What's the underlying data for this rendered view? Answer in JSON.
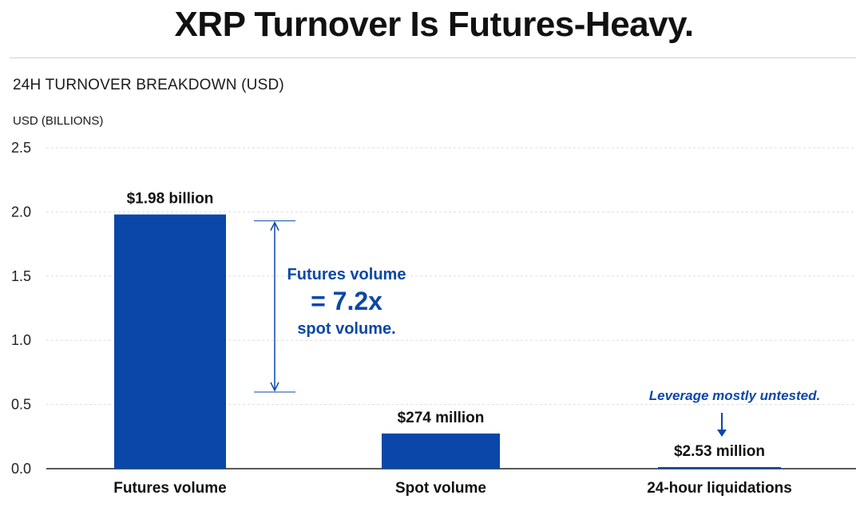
{
  "header": {
    "title": "XRP Turnover Is Futures-Heavy.",
    "subtitle": "24H TURNOVER BREAKDOWN (USD)"
  },
  "colors": {
    "bar": "#0a47a8",
    "annotation": "#0a47a8",
    "grid": "#dddddd",
    "axis": "#222222"
  },
  "chart_data": {
    "type": "bar",
    "title": "",
    "xlabel": "",
    "ylabel": "USD (BILLIONS)",
    "ylim": [
      0,
      2.5
    ],
    "yticks": [
      "0.0",
      "0.5",
      "1.0",
      "1.5",
      "2.0",
      "2.5"
    ],
    "grid": true,
    "categories": [
      "Futures volume",
      "Spot volume",
      "24-hour liquidations"
    ],
    "values": [
      1.98,
      0.274,
      0.00253
    ],
    "data_labels": [
      "$1.98 billion",
      "$274 million",
      "$2.53 million"
    ],
    "annotations": {
      "ratio_line1": "Futures volume",
      "ratio_line2": "= 7.2x",
      "ratio_line3": "spot volume.",
      "leverage_note": "Leverage mostly untested."
    }
  }
}
